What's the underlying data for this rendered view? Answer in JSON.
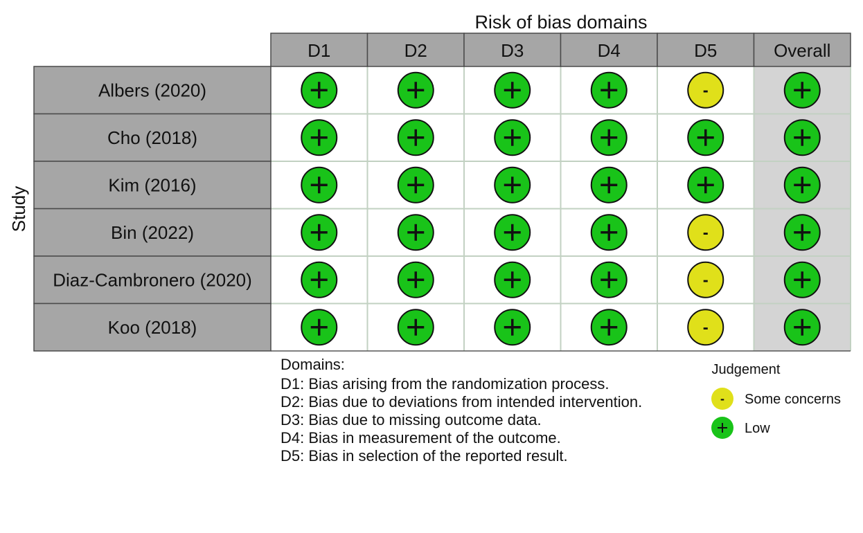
{
  "chart_data": {
    "type": "table",
    "title": "Risk of bias domains",
    "ylabel": "Study",
    "columns": [
      "D1",
      "D2",
      "D3",
      "D4",
      "D5",
      "Overall"
    ],
    "studies": [
      "Albers (2020)",
      "Cho (2018)",
      "Kim (2016)",
      "Bin (2022)",
      "Diaz-Cambronero (2020)",
      "Koo (2018)"
    ],
    "judgements": [
      [
        "+",
        "+",
        "+",
        "+",
        "-",
        "+"
      ],
      [
        "+",
        "+",
        "+",
        "+",
        "+",
        "+"
      ],
      [
        "+",
        "+",
        "+",
        "+",
        "+",
        "+"
      ],
      [
        "+",
        "+",
        "+",
        "+",
        "-",
        "+"
      ],
      [
        "+",
        "+",
        "+",
        "+",
        "-",
        "+"
      ],
      [
        "+",
        "+",
        "+",
        "+",
        "-",
        "+"
      ]
    ],
    "domains_heading": "Domains:",
    "domain_descriptions": [
      "D1: Bias arising from the randomization process.",
      "D2: Bias due to deviations from intended intervention.",
      "D3: Bias due to missing outcome data.",
      "D4: Bias in measurement of the outcome.",
      "D5: Bias in selection of the reported result."
    ],
    "legend": {
      "title": "Judgement",
      "items": [
        {
          "symbol": "-",
          "label": "Some concerns",
          "color": "#e0e01a"
        },
        {
          "symbol": "+",
          "label": "Low",
          "color": "#19c319"
        }
      ]
    },
    "colors": {
      "low": "#19c319",
      "some_concerns": "#e0e01a",
      "header_fill": "#a6a6a6",
      "overall_fill": "#d4d4d4",
      "grid": "#c2d1c2"
    }
  }
}
